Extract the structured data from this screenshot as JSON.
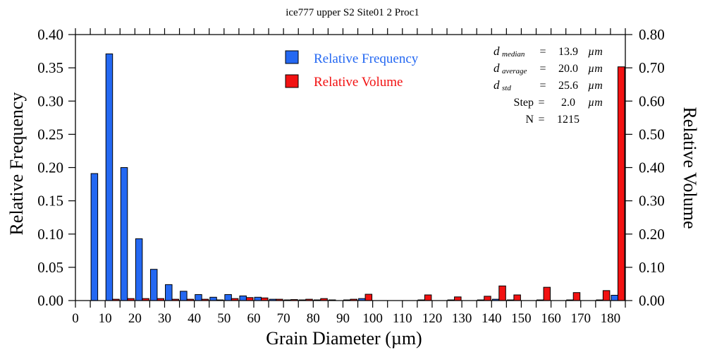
{
  "chart_data": {
    "type": "bar",
    "title": "ice777 upper S2 Site01 2 Proc1",
    "xlabel": "Grain Diameter (µm)",
    "ylabel": "Relative Frequency",
    "y2label": "Relative Volume",
    "xlim": [
      0,
      185
    ],
    "ylim": [
      0,
      0.4
    ],
    "y2lim": [
      0,
      0.8
    ],
    "xticks": [
      "0",
      "10",
      "20",
      "30",
      "40",
      "50",
      "60",
      "70",
      "80",
      "90",
      "100",
      "110",
      "120",
      "130",
      "140",
      "150",
      "160",
      "170",
      "180"
    ],
    "yticks": [
      "0.00",
      "0.05",
      "0.10",
      "0.15",
      "0.20",
      "0.25",
      "0.30",
      "0.35",
      "0.40"
    ],
    "y2ticks": [
      "0.00",
      "0.10",
      "0.20",
      "0.30",
      "0.40",
      "0.50",
      "0.60",
      "0.70",
      "0.80"
    ],
    "bin_width": 5,
    "bin_starts": [
      0,
      5,
      10,
      15,
      20,
      25,
      30,
      35,
      40,
      45,
      50,
      55,
      60,
      65,
      70,
      75,
      80,
      85,
      90,
      95,
      100,
      105,
      110,
      115,
      120,
      125,
      130,
      135,
      140,
      145,
      150,
      155,
      160,
      165,
      170,
      175,
      180
    ],
    "series": [
      {
        "name": "Relative Frequency",
        "axis": "left",
        "color": "#2468f2",
        "values": [
          0,
          0.191,
          0.371,
          0.2,
          0.093,
          0.047,
          0.024,
          0.014,
          0.009,
          0.005,
          0.009,
          0.007,
          0.005,
          0.002,
          0.001,
          0.001,
          0.001,
          0.001,
          0.001,
          0.003,
          0,
          0,
          0,
          0.001,
          0,
          0.001,
          0,
          0.001,
          0.002,
          0.001,
          0,
          0.001,
          0,
          0.001,
          0,
          0.001,
          0.008
        ]
      },
      {
        "name": "Relative Volume",
        "axis": "right",
        "color": "#f21212",
        "values": [
          0,
          0,
          0.004,
          0.006,
          0.006,
          0.006,
          0.004,
          0.004,
          0.004,
          0.002,
          0.006,
          0.009,
          0.008,
          0.004,
          0.003,
          0.004,
          0.006,
          0,
          0.004,
          0.019,
          0,
          0,
          0,
          0.017,
          0,
          0.011,
          0,
          0.013,
          0.044,
          0.017,
          0,
          0.04,
          0,
          0.024,
          0,
          0.03,
          0.703
        ]
      }
    ],
    "legend": {
      "position": "top-center",
      "entries": [
        "Relative Frequency",
        "Relative Volume"
      ]
    },
    "stats": [
      {
        "label": "d",
        "sub": "median",
        "value": "13.9",
        "unit": "µm"
      },
      {
        "label": "d",
        "sub": "average",
        "value": "20.0",
        "unit": "µm"
      },
      {
        "label": "d",
        "sub": "std",
        "value": "25.6",
        "unit": "µm"
      },
      {
        "label": "Step",
        "sub": "",
        "value": "2.0",
        "unit": "µm"
      },
      {
        "label": "N",
        "sub": "",
        "value": "1215",
        "unit": ""
      }
    ]
  }
}
